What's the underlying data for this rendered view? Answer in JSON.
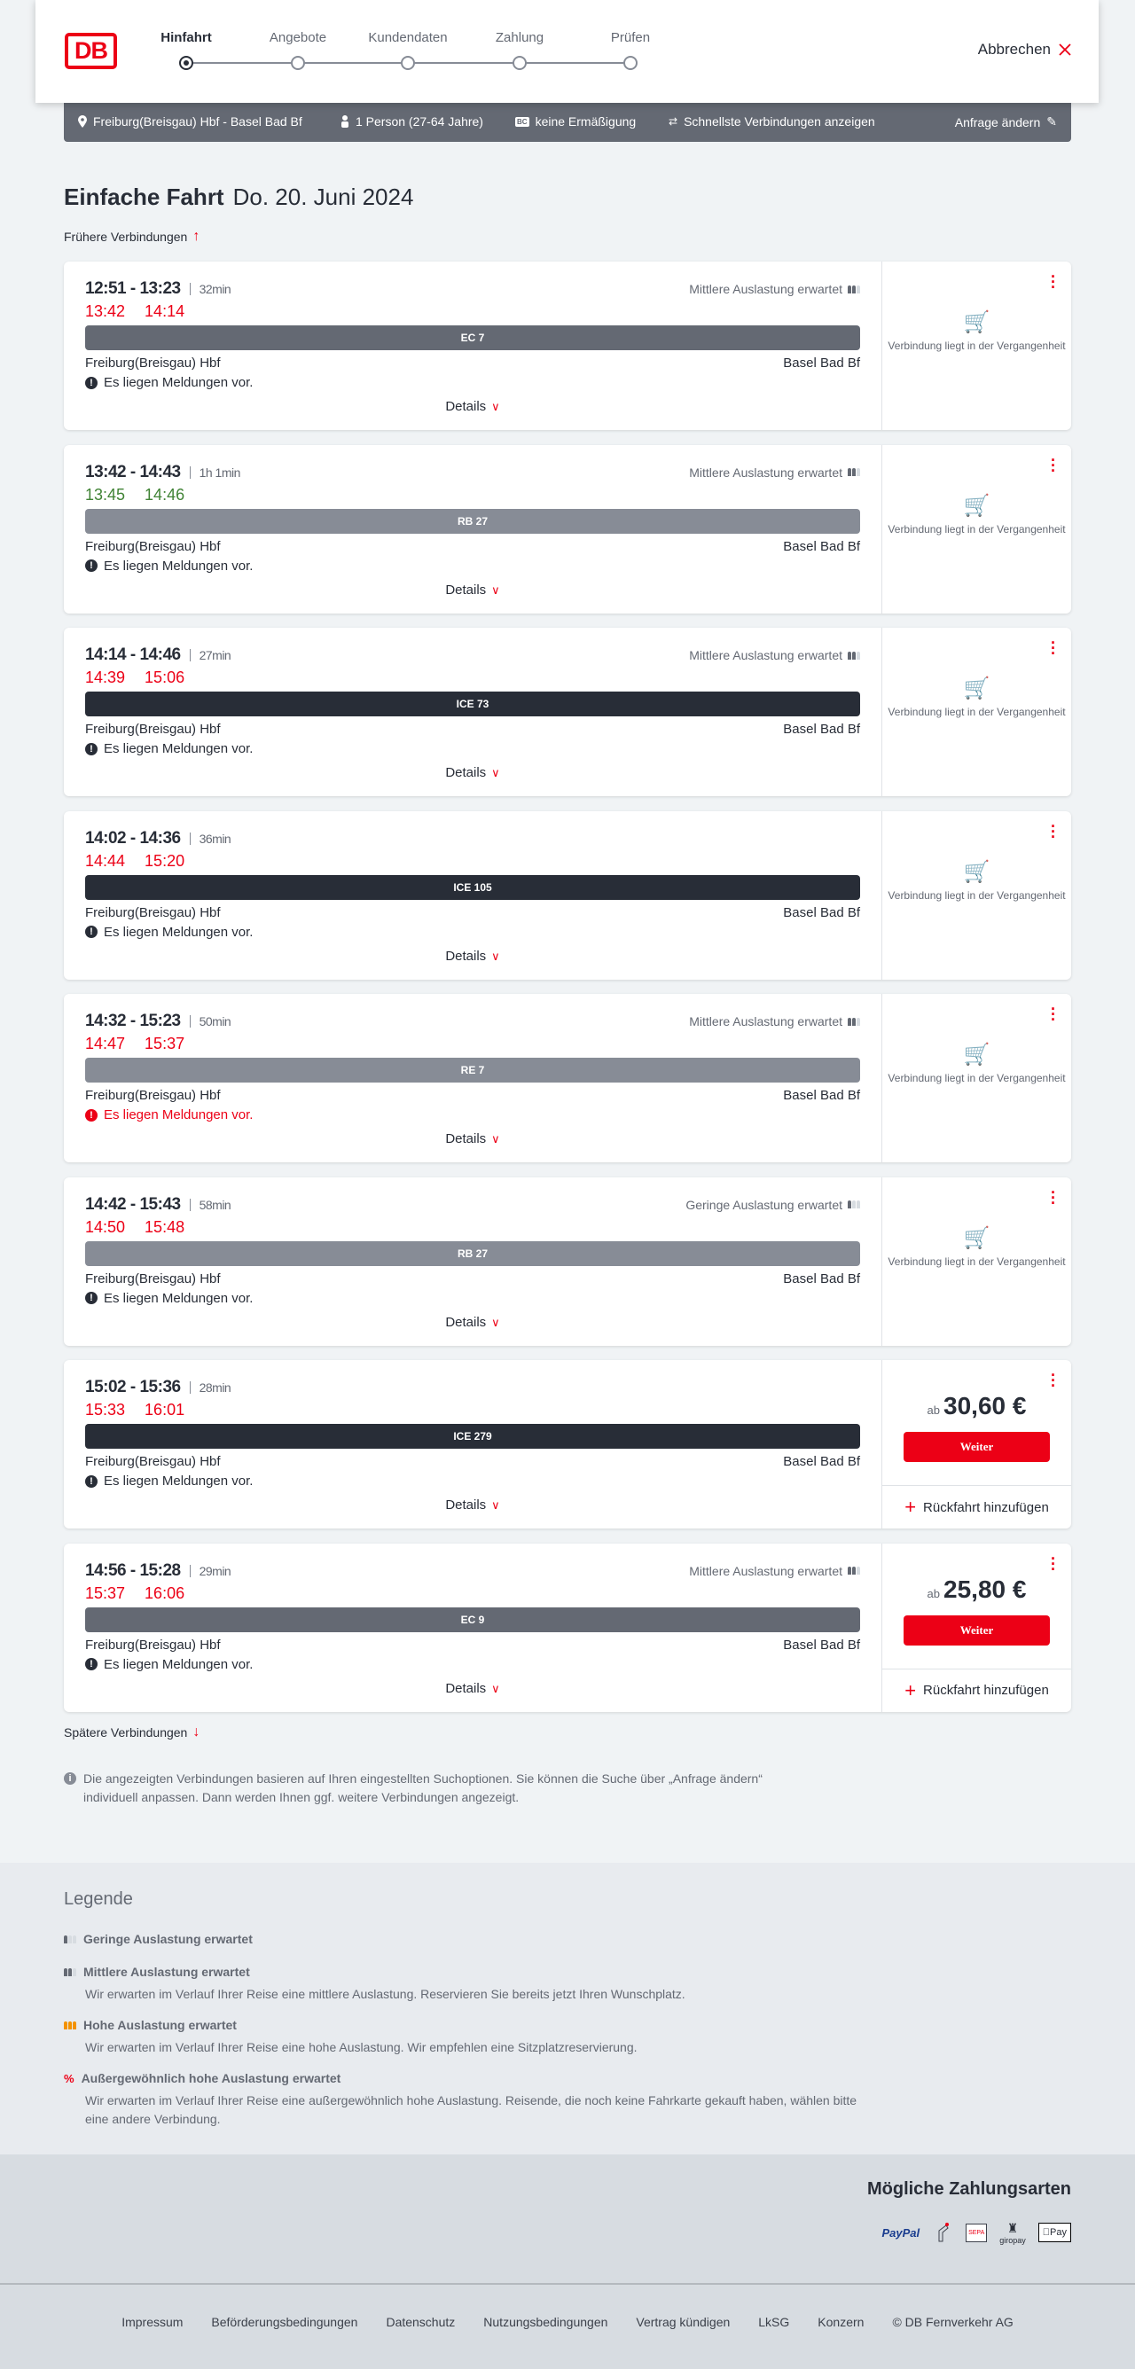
{
  "header": {
    "logo": "DB",
    "steps": [
      {
        "label": "Hinfahrt",
        "active": true
      },
      {
        "label": "Angebote",
        "active": false
      },
      {
        "label": "Kundendaten",
        "active": false
      },
      {
        "label": "Zahlung",
        "active": false
      },
      {
        "label": "Prüfen",
        "active": false
      }
    ],
    "cancel_label": "Abbrechen"
  },
  "search_summary": {
    "route": "Freiburg(Breisgau) Hbf - Basel Bad Bf",
    "passengers": "1 Person (27-64 Jahre)",
    "discount_badge": "BC",
    "discount": "keine Ermäßigung",
    "fastest": "Schnellste Verbindungen anzeigen",
    "change_request": "Anfrage ändern"
  },
  "page": {
    "title": "Einfache Fahrt",
    "date": "Do. 20. Juni 2024",
    "earlier": "Frühere Verbindungen",
    "later": "Spätere Verbindungen",
    "info": "Die angezeigten Verbindungen basieren auf Ihren eingestellten Suchoptionen. Sie können die Suche über „Anfrage ändern“ individuell anpassen. Dann werden Ihnen ggf. weitere Verbindungen angezeigt."
  },
  "common": {
    "details": "Details",
    "past": "Verbindung liegt in der Vergangenheit",
    "price_prefix": "ab",
    "continue": "Weiter",
    "add_return": "Rückfahrt hinzufügen"
  },
  "colors": {
    "accent": "#ec0016",
    "delay_late": "#ec0016",
    "delay_ontime": "#408335",
    "ec_bar": "#646973",
    "regional_bar": "#878c96",
    "ice_bar": "#282d37"
  },
  "connections": [
    {
      "times": "12:51 - 13:23",
      "duration": "32min",
      "rt_dep": "13:42",
      "rt_arr": "14:14",
      "rt_status": "late",
      "load": "Mittlere Auslastung erwartet",
      "load_level": 2,
      "train": "EC 7",
      "train_type": "ec",
      "from": "Freiburg(Breisgau) Hbf",
      "to": "Basel Bad Bf",
      "message": "Es liegen Meldungen vor.",
      "message_highlight": false,
      "past": true
    },
    {
      "times": "13:42 - 14:43",
      "duration": "1h 1min",
      "rt_dep": "13:45",
      "rt_arr": "14:46",
      "rt_status": "ontime",
      "load": "Mittlere Auslastung erwartet",
      "load_level": 2,
      "train": "RB 27",
      "train_type": "regional",
      "from": "Freiburg(Breisgau) Hbf",
      "to": "Basel Bad Bf",
      "message": "Es liegen Meldungen vor.",
      "message_highlight": false,
      "past": true
    },
    {
      "times": "14:14 - 14:46",
      "duration": "27min",
      "rt_dep": "14:39",
      "rt_arr": "15:06",
      "rt_status": "late",
      "load": "Mittlere Auslastung erwartet",
      "load_level": 2,
      "train": "ICE 73",
      "train_type": "ice",
      "from": "Freiburg(Breisgau) Hbf",
      "to": "Basel Bad Bf",
      "message": "Es liegen Meldungen vor.",
      "message_highlight": false,
      "past": true
    },
    {
      "times": "14:02 - 14:36",
      "duration": "36min",
      "rt_dep": "14:44",
      "rt_arr": "15:20",
      "rt_status": "late",
      "load": "",
      "load_level": 0,
      "train": "ICE 105",
      "train_type": "ice",
      "from": "Freiburg(Breisgau) Hbf",
      "to": "Basel Bad Bf",
      "message": "Es liegen Meldungen vor.",
      "message_highlight": false,
      "past": true
    },
    {
      "times": "14:32 - 15:23",
      "duration": "50min",
      "rt_dep": "14:47",
      "rt_arr": "15:37",
      "rt_status": "late",
      "load": "Mittlere Auslastung erwartet",
      "load_level": 2,
      "train": "RE 7",
      "train_type": "regional",
      "from": "Freiburg(Breisgau) Hbf",
      "to": "Basel Bad Bf",
      "message": "Es liegen Meldungen vor.",
      "message_highlight": true,
      "past": true
    },
    {
      "times": "14:42 - 15:43",
      "duration": "58min",
      "rt_dep": "14:50",
      "rt_arr": "15:48",
      "rt_status": "late",
      "load": "Geringe Auslastung erwartet",
      "load_level": 1,
      "train": "RB 27",
      "train_type": "regional",
      "from": "Freiburg(Breisgau) Hbf",
      "to": "Basel Bad Bf",
      "message": "Es liegen Meldungen vor.",
      "message_highlight": false,
      "past": true
    },
    {
      "times": "15:02 - 15:36",
      "duration": "28min",
      "rt_dep": "15:33",
      "rt_arr": "16:01",
      "rt_status": "late",
      "load": "",
      "load_level": 0,
      "train": "ICE 279",
      "train_type": "ice",
      "from": "Freiburg(Breisgau) Hbf",
      "to": "Basel Bad Bf",
      "message": "Es liegen Meldungen vor.",
      "message_highlight": false,
      "past": false,
      "price": "30,60 €"
    },
    {
      "times": "14:56 - 15:28",
      "duration": "29min",
      "rt_dep": "15:37",
      "rt_arr": "16:06",
      "rt_status": "late",
      "load": "Mittlere Auslastung erwartet",
      "load_level": 2,
      "train": "EC 9",
      "train_type": "ec",
      "from": "Freiburg(Breisgau) Hbf",
      "to": "Basel Bad Bf",
      "message": "Es liegen Meldungen vor.",
      "message_highlight": false,
      "past": false,
      "price": "25,80 €"
    }
  ],
  "legend": {
    "title": "Legende",
    "items": [
      {
        "title": "Geringe Auslastung erwartet",
        "desc": ""
      },
      {
        "title": "Mittlere Auslastung erwartet",
        "desc": "Wir erwarten im Verlauf Ihrer Reise eine mittlere Auslastung. Reservieren Sie bereits jetzt Ihren Wunschplatz."
      },
      {
        "title": "Hohe Auslastung erwartet",
        "desc": "Wir erwarten im Verlauf Ihrer Reise eine hohe Auslastung. Wir empfehlen eine Sitzplatzreservierung."
      },
      {
        "title": "Außergewöhnlich hohe Auslastung erwartet",
        "desc": "Wir erwarten im Verlauf Ihrer Reise eine außergewöhnlich hohe Auslastung. Reisende, die noch keine Fahrkarte gekauft haben, wählen bitte eine andere Verbindung."
      }
    ]
  },
  "footer": {
    "payment_title": "Mögliche Zahlungsarten",
    "payment_methods": [
      "PayPal",
      "credit-card",
      "SEPA",
      "giropay",
      "Pay"
    ],
    "links": [
      "Impressum",
      "Beförderungsbedingungen",
      "Datenschutz",
      "Nutzungsbedingungen",
      "Vertrag kündigen",
      "LkSG",
      "Konzern",
      "© DB Fernverkehr AG"
    ]
  }
}
